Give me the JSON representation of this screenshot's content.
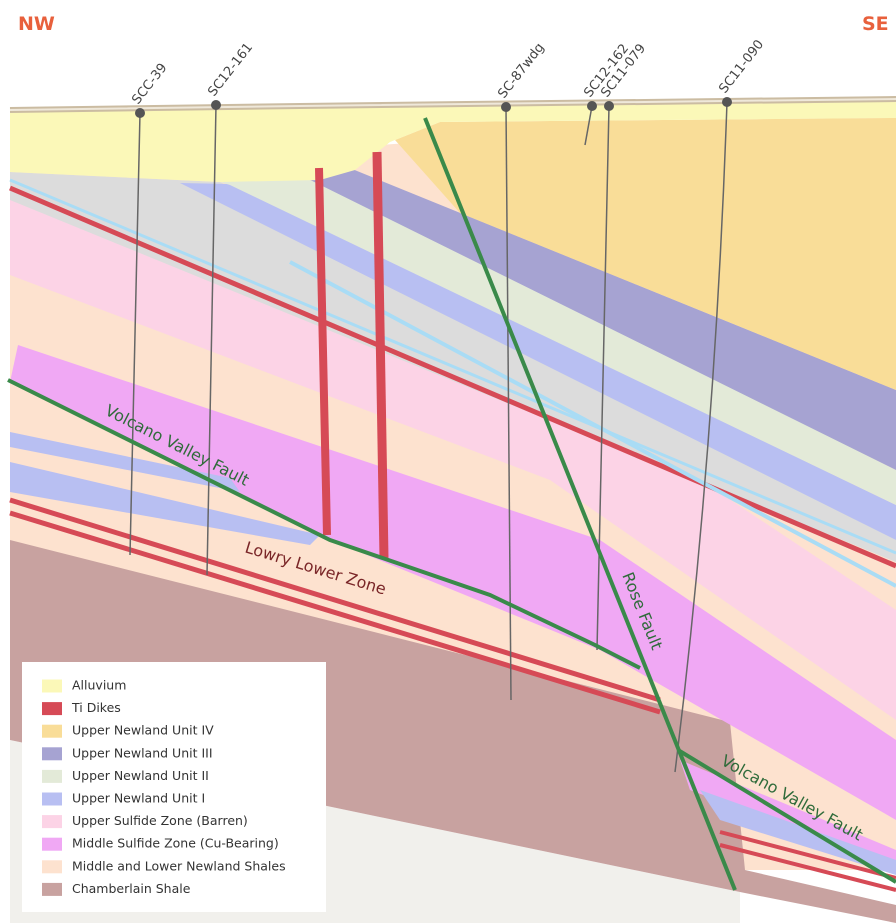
{
  "orientation": {
    "left": "NW",
    "right": "SE"
  },
  "drill_holes": [
    {
      "label": "SCC-39"
    },
    {
      "label": "SC12-161"
    },
    {
      "label": "SC-87wdg"
    },
    {
      "label": "SC12-162"
    },
    {
      "label": "SC11-079"
    },
    {
      "label": "SC11-090"
    }
  ],
  "annotations": [
    {
      "label": "Volcano Valley Fault"
    },
    {
      "label": "Lowry Lower Zone"
    },
    {
      "label": "Rose Fault"
    },
    {
      "label": "Volcano Valley Fault"
    }
  ],
  "legend": {
    "items": [
      {
        "label": "Alluvium",
        "color": "#fbf8b8"
      },
      {
        "label": "Ti Dikes",
        "color": "#d64a56"
      },
      {
        "label": "Upper Newland Unit IV",
        "color": "#f9dd98"
      },
      {
        "label": "Upper Newland Unit III",
        "color": "#a6a3d2"
      },
      {
        "label": "Upper Newland Unit II",
        "color": "#e3ead8"
      },
      {
        "label": "Upper Newland Unit I",
        "color": "#b8bff2"
      },
      {
        "label": "Upper Sulfide Zone (Barren)",
        "color": "#fcd3e6"
      },
      {
        "label": "Middle Sulfide Zone (Cu-Bearing)",
        "color": "#f0a8f4"
      },
      {
        "label": "Middle and Lower Newland Shales",
        "color": "#fde2cf"
      },
      {
        "label": "Chamberlain Shale",
        "color": "#c8a2a0"
      }
    ]
  }
}
